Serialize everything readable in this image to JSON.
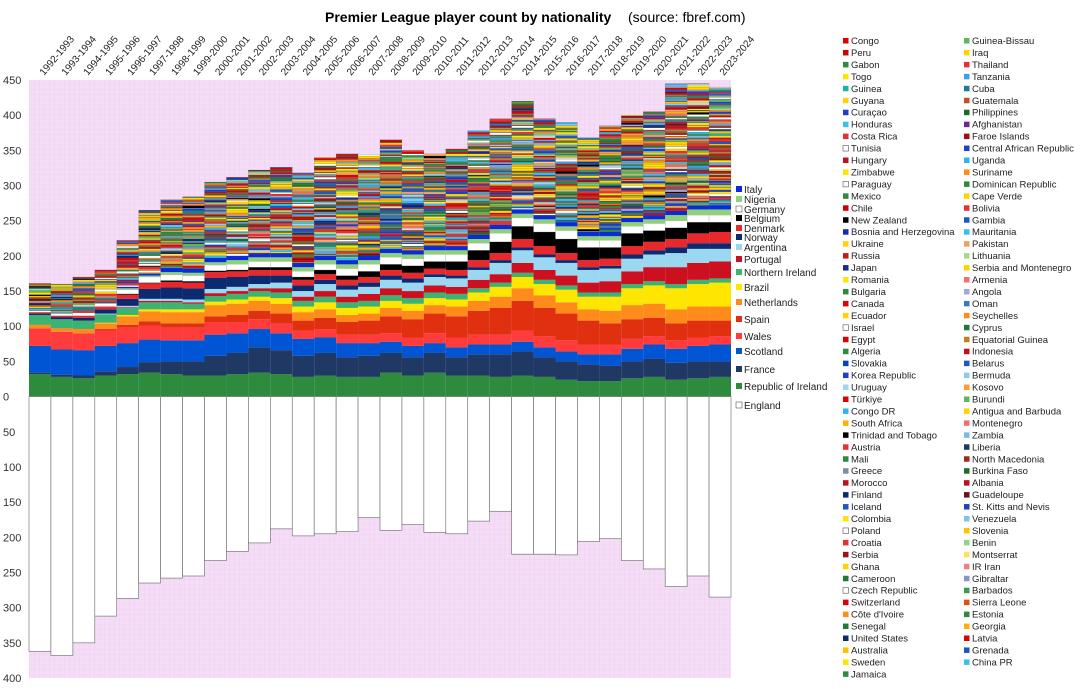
{
  "chart_data": {
    "type": "bar",
    "title": "Premier League player count by nationality",
    "source": "(source: fbref.com)",
    "categories": [
      "1992-1993",
      "1993-1994",
      "1994-1995",
      "1995-1996",
      "1996-1997",
      "1997-1998",
      "1998-1999",
      "1999-2000",
      "2000-2001",
      "2001-2002",
      "2002-2003",
      "2003-2004",
      "2004-2005",
      "2005-2006",
      "2006-2007",
      "2007-2008",
      "2008-2009",
      "2009-2010",
      "2010-2011",
      "2011-2012",
      "2012-2013",
      "2013-2014",
      "2014-2015",
      "2015-2016",
      "2016-2017",
      "2017-2018",
      "2018-2019",
      "2019-2020",
      "2020-2021",
      "2021-2022",
      "2022-2023",
      "2023-2024"
    ],
    "y_ticks_positive": [
      "0",
      "50",
      "100",
      "150",
      "200",
      "250",
      "300",
      "350",
      "400",
      "450"
    ],
    "y_ticks_negative": [
      "50",
      "100",
      "150",
      "200",
      "250",
      "300",
      "350",
      "400"
    ],
    "ylim": [
      -400,
      450
    ],
    "england_below_axis": true,
    "totals": [
      161,
      160,
      170,
      180,
      222,
      265,
      280,
      284,
      305,
      312,
      322,
      326,
      318,
      340,
      345,
      346,
      365,
      350,
      345,
      352,
      378,
      395,
      420,
      395,
      390,
      368,
      385,
      400,
      405,
      445,
      445,
      440
    ],
    "england": [
      362,
      368,
      350,
      312,
      287,
      265,
      258,
      255,
      233,
      220,
      208,
      188,
      198,
      195,
      192,
      172,
      190,
      182,
      193,
      195,
      177,
      163,
      224,
      224,
      225,
      206,
      202,
      233,
      245,
      270,
      255,
      285
    ],
    "series": [
      {
        "name": "Republic of Ireland",
        "color": "#2e8b3e",
        "values": [
          32,
          28,
          26,
          30,
          32,
          34,
          32,
          30,
          30,
          32,
          34,
          32,
          28,
          30,
          28,
          28,
          34,
          30,
          34,
          30,
          30,
          28,
          30,
          28,
          24,
          22,
          22,
          26,
          28,
          24,
          26,
          28
        ]
      },
      {
        "name": "France",
        "color": "#1f3864",
        "values": [
          2,
          3,
          4,
          6,
          10,
          15,
          18,
          20,
          28,
          30,
          36,
          34,
          30,
          32,
          28,
          30,
          28,
          26,
          28,
          26,
          30,
          32,
          34,
          28,
          26,
          24,
          22,
          24,
          26,
          24,
          24,
          22
        ]
      },
      {
        "name": "Scotland",
        "color": "#0055d4",
        "values": [
          38,
          36,
          36,
          36,
          34,
          32,
          30,
          30,
          30,
          28,
          26,
          24,
          24,
          22,
          20,
          18,
          16,
          16,
          14,
          14,
          14,
          14,
          14,
          14,
          14,
          14,
          16,
          18,
          20,
          20,
          22,
          24
        ]
      },
      {
        "name": "Wales",
        "color": "#ff3b3b",
        "values": [
          25,
          25,
          24,
          22,
          22,
          20,
          18,
          18,
          18,
          16,
          14,
          14,
          12,
          12,
          12,
          12,
          12,
          12,
          14,
          14,
          14,
          14,
          16,
          16,
          16,
          14,
          14,
          14,
          12,
          12,
          12,
          12
        ]
      },
      {
        "name": "Spain",
        "color": "#e03010",
        "values": [
          0,
          0,
          0,
          2,
          4,
          6,
          6,
          6,
          8,
          10,
          12,
          14,
          14,
          16,
          18,
          20,
          24,
          26,
          28,
          30,
          34,
          38,
          42,
          40,
          38,
          34,
          30,
          28,
          26,
          24,
          24,
          22
        ]
      },
      {
        "name": "Netherlands",
        "color": "#ff8c1a",
        "values": [
          5,
          5,
          6,
          8,
          12,
          14,
          16,
          16,
          16,
          16,
          14,
          14,
          12,
          12,
          10,
          10,
          12,
          12,
          12,
          14,
          14,
          16,
          18,
          18,
          16,
          16,
          18,
          20,
          20,
          20,
          20,
          20
        ]
      },
      {
        "name": "Brazil",
        "color": "#ffe600",
        "values": [
          0,
          0,
          0,
          1,
          2,
          3,
          4,
          4,
          5,
          6,
          6,
          8,
          8,
          10,
          10,
          10,
          10,
          10,
          10,
          10,
          12,
          14,
          16,
          16,
          18,
          18,
          20,
          24,
          26,
          30,
          32,
          34
        ]
      },
      {
        "name": "Northern Ireland",
        "color": "#3cb371",
        "values": [
          14,
          13,
          12,
          12,
          10,
          10,
          10,
          8,
          8,
          8,
          8,
          8,
          8,
          8,
          8,
          8,
          8,
          8,
          8,
          8,
          6,
          6,
          6,
          6,
          6,
          6,
          6,
          6,
          6,
          6,
          6,
          6
        ]
      },
      {
        "name": "Portugal",
        "color": "#cc1020",
        "values": [
          0,
          0,
          0,
          0,
          1,
          2,
          2,
          2,
          4,
          4,
          4,
          6,
          6,
          8,
          8,
          10,
          10,
          10,
          10,
          10,
          12,
          12,
          14,
          14,
          14,
          14,
          16,
          18,
          20,
          24,
          24,
          24
        ]
      },
      {
        "name": "Argentina",
        "color": "#9ad7f0",
        "values": [
          0,
          0,
          0,
          1,
          2,
          3,
          3,
          4,
          6,
          6,
          6,
          8,
          8,
          10,
          10,
          10,
          12,
          12,
          12,
          12,
          14,
          16,
          18,
          18,
          18,
          18,
          18,
          18,
          18,
          20,
          20,
          18
        ]
      },
      {
        "name": "Norway",
        "color": "#0b2a70",
        "values": [
          2,
          3,
          4,
          6,
          10,
          14,
          16,
          16,
          16,
          14,
          12,
          10,
          8,
          6,
          6,
          6,
          6,
          6,
          4,
          4,
          4,
          4,
          4,
          4,
          4,
          4,
          4,
          6,
          6,
          8,
          8,
          8
        ]
      },
      {
        "name": "Denmark",
        "color": "#e8282a",
        "values": [
          2,
          2,
          3,
          4,
          6,
          8,
          8,
          8,
          8,
          8,
          8,
          8,
          8,
          8,
          8,
          8,
          8,
          8,
          8,
          8,
          10,
          10,
          12,
          12,
          10,
          10,
          10,
          12,
          12,
          12,
          14,
          16
        ]
      },
      {
        "name": "Belgium",
        "color": "#000000",
        "values": [
          0,
          0,
          0,
          0,
          1,
          1,
          2,
          2,
          2,
          2,
          4,
          4,
          4,
          6,
          6,
          8,
          8,
          10,
          10,
          12,
          14,
          16,
          18,
          20,
          20,
          18,
          16,
          18,
          16,
          16,
          16,
          14
        ]
      },
      {
        "name": "Germany",
        "color": "#ffffff",
        "values": [
          2,
          3,
          4,
          4,
          6,
          8,
          8,
          8,
          8,
          8,
          8,
          8,
          8,
          8,
          10,
          10,
          10,
          10,
          10,
          10,
          10,
          12,
          12,
          12,
          12,
          10,
          10,
          10,
          10,
          10,
          10,
          10
        ]
      },
      {
        "name": "Nigeria",
        "color": "#8fd17a",
        "values": [
          0,
          0,
          0,
          1,
          2,
          2,
          4,
          4,
          4,
          6,
          6,
          6,
          6,
          6,
          6,
          6,
          6,
          6,
          6,
          6,
          6,
          6,
          6,
          6,
          6,
          6,
          6,
          6,
          6,
          8,
          8,
          8
        ]
      },
      {
        "name": "Italy",
        "color": "#0a2cd6",
        "values": [
          0,
          0,
          0,
          1,
          2,
          3,
          6,
          6,
          6,
          6,
          6,
          6,
          6,
          6,
          6,
          6,
          6,
          6,
          6,
          6,
          6,
          6,
          6,
          6,
          6,
          6,
          6,
          6,
          6,
          6,
          6,
          6
        ]
      }
    ],
    "legend_labels": [
      "Italy",
      "Nigeria",
      "Germany",
      "Belgium",
      "Denmark",
      "Norway",
      "Argentina",
      "Portugal",
      "Northern Ireland",
      "Brazil",
      "Netherlands",
      "Spain",
      "Wales",
      "Scotland",
      "France",
      "Republic of Ireland",
      "England"
    ],
    "others": [
      {
        "name": "Congo",
        "color": "#e00000"
      },
      {
        "name": "Peru",
        "color": "#d40000"
      },
      {
        "name": "Gabon",
        "color": "#2e8b3e"
      },
      {
        "name": "Togo",
        "color": "#ffe600"
      },
      {
        "name": "Guinea",
        "color": "#20b2aa"
      },
      {
        "name": "Guyana",
        "color": "#ffd400"
      },
      {
        "name": "Curaçao",
        "color": "#1e40c8"
      },
      {
        "name": "Honduras",
        "color": "#3ac0e8"
      },
      {
        "name": "Costa Rica",
        "color": "#e83030"
      },
      {
        "name": "Tunisia",
        "color": "#ffffff"
      },
      {
        "name": "Hungary",
        "color": "#c01020"
      },
      {
        "name": "Zimbabwe",
        "color": "#ffe600"
      },
      {
        "name": "Paraguay",
        "color": "#ffffff"
      },
      {
        "name": "Mexico",
        "color": "#2e8b3e"
      },
      {
        "name": "Chile",
        "color": "#d00000"
      },
      {
        "name": "New Zealand",
        "color": "#000000"
      },
      {
        "name": "Bosnia and Herzegovina",
        "color": "#1030b0"
      },
      {
        "name": "Ukraine",
        "color": "#ffd400"
      },
      {
        "name": "Russia",
        "color": "#c81818"
      },
      {
        "name": "Japan",
        "color": "#1e2a8c"
      },
      {
        "name": "Romania",
        "color": "#ffe600"
      },
      {
        "name": "Bulgaria",
        "color": "#2e8b3e"
      },
      {
        "name": "Canada",
        "color": "#e00000"
      },
      {
        "name": "Ecuador",
        "color": "#ffd400"
      },
      {
        "name": "Israel",
        "color": "#ffffff"
      },
      {
        "name": "Egypt",
        "color": "#e00000"
      },
      {
        "name": "Algeria",
        "color": "#2e8b3e"
      },
      {
        "name": "Slovakia",
        "color": "#1040c0"
      },
      {
        "name": "Korea Republic",
        "color": "#1e40c8"
      },
      {
        "name": "Uruguay",
        "color": "#9ad7f0"
      },
      {
        "name": "Türkiye",
        "color": "#e00000"
      },
      {
        "name": "Congo DR",
        "color": "#2fb6e8"
      },
      {
        "name": "South Africa",
        "color": "#ffb000"
      },
      {
        "name": "Trinidad and Tobago",
        "color": "#000000"
      },
      {
        "name": "Austria",
        "color": "#e83030"
      },
      {
        "name": "Mali",
        "color": "#2e8b3e"
      },
      {
        "name": "Greece",
        "color": "#7a8fa8"
      },
      {
        "name": "Morocco",
        "color": "#c01020"
      },
      {
        "name": "Finland",
        "color": "#0b2a70"
      },
      {
        "name": "Iceland",
        "color": "#1e56c8"
      },
      {
        "name": "Colombia",
        "color": "#ffe600"
      },
      {
        "name": "Poland",
        "color": "#ffffff"
      },
      {
        "name": "Croatia",
        "color": "#e83030"
      },
      {
        "name": "Serbia",
        "color": "#a01018"
      },
      {
        "name": "Ghana",
        "color": "#ffd400"
      },
      {
        "name": "Cameroon",
        "color": "#1f7a3a"
      },
      {
        "name": "Czech Republic",
        "color": "#ffffff"
      },
      {
        "name": "Switzerland",
        "color": "#e00000"
      },
      {
        "name": "Côte d'Ivoire",
        "color": "#ff8c1a"
      },
      {
        "name": "Senegal",
        "color": "#1f7a3a"
      },
      {
        "name": "United States",
        "color": "#0b2a70"
      },
      {
        "name": "Australia",
        "color": "#ffc000"
      },
      {
        "name": "Sweden",
        "color": "#ffe600"
      },
      {
        "name": "Jamaica",
        "color": "#2e8b3e"
      },
      {
        "name": "Guinea-Bissau",
        "color": "#5cb85c"
      },
      {
        "name": "Iraq",
        "color": "#ffd400"
      },
      {
        "name": "Thailand",
        "color": "#e83030"
      },
      {
        "name": "Tanzania",
        "color": "#3aa0e8"
      },
      {
        "name": "Cuba",
        "color": "#1f7a9a"
      },
      {
        "name": "Guatemala",
        "color": "#c0502a"
      },
      {
        "name": "Philippines",
        "color": "#1f6a2a"
      },
      {
        "name": "Afghanistan",
        "color": "#6a2a8c"
      },
      {
        "name": "Faroe Islands",
        "color": "#a01018"
      },
      {
        "name": "Central African Republic",
        "color": "#1e40c8"
      },
      {
        "name": "Uganda",
        "color": "#2fb6e8"
      },
      {
        "name": "Suriname",
        "color": "#ff8c1a"
      },
      {
        "name": "Dominican Republic",
        "color": "#2e8b3e"
      },
      {
        "name": "Cape Verde",
        "color": "#ffd400"
      },
      {
        "name": "Bolivia",
        "color": "#e83030"
      },
      {
        "name": "Gambia",
        "color": "#1e56c8"
      },
      {
        "name": "Mauritania",
        "color": "#3ac0e8"
      },
      {
        "name": "Pakistan",
        "color": "#f0a060"
      },
      {
        "name": "Lithuania",
        "color": "#a8d888"
      },
      {
        "name": "Serbia and Montenegro",
        "color": "#ffd400"
      },
      {
        "name": "Armenia",
        "color": "#f07070"
      },
      {
        "name": "Angola",
        "color": "#a0a8d8"
      },
      {
        "name": "Oman",
        "color": "#3a7ab8"
      },
      {
        "name": "Seychelles",
        "color": "#ff8c1a"
      },
      {
        "name": "Cyprus",
        "color": "#1f7a3a"
      },
      {
        "name": "Equatorial Guinea",
        "color": "#c08020"
      },
      {
        "name": "Indonesia",
        "color": "#c01020"
      },
      {
        "name": "Belarus",
        "color": "#1e56c8"
      },
      {
        "name": "Bermuda",
        "color": "#88ccee"
      },
      {
        "name": "Kosovo",
        "color": "#ff9c30"
      },
      {
        "name": "Burundi",
        "color": "#5cb85c"
      },
      {
        "name": "Antigua and Barbuda",
        "color": "#ffd400"
      },
      {
        "name": "Montenegro",
        "color": "#f07070"
      },
      {
        "name": "Zambia",
        "color": "#7ab8e8"
      },
      {
        "name": "Liberia",
        "color": "#1f3864"
      },
      {
        "name": "North Macedonia",
        "color": "#a02818"
      },
      {
        "name": "Burkina Faso",
        "color": "#1f6a2a"
      },
      {
        "name": "Albania",
        "color": "#c01020"
      },
      {
        "name": "Guadeloupe",
        "color": "#6a1018"
      },
      {
        "name": "St. Kitts and Nevis",
        "color": "#1e40c8"
      },
      {
        "name": "Venezuela",
        "color": "#7ac8e8"
      },
      {
        "name": "Slovenia",
        "color": "#ffc000"
      },
      {
        "name": "Benin",
        "color": "#88d888"
      },
      {
        "name": "Montserrat",
        "color": "#ffe060"
      },
      {
        "name": "IR Iran",
        "color": "#f08080"
      },
      {
        "name": "Gibraltar",
        "color": "#8098c8"
      },
      {
        "name": "Barbados",
        "color": "#3a9a5a"
      },
      {
        "name": "Sierra Leone",
        "color": "#e05010"
      },
      {
        "name": "Estonia",
        "color": "#2e8b3e"
      },
      {
        "name": "Georgia",
        "color": "#ffb000"
      },
      {
        "name": "Latvia",
        "color": "#e00000"
      },
      {
        "name": "Grenada",
        "color": "#1e56c8"
      },
      {
        "name": "China PR",
        "color": "#3ac0e8"
      }
    ]
  }
}
